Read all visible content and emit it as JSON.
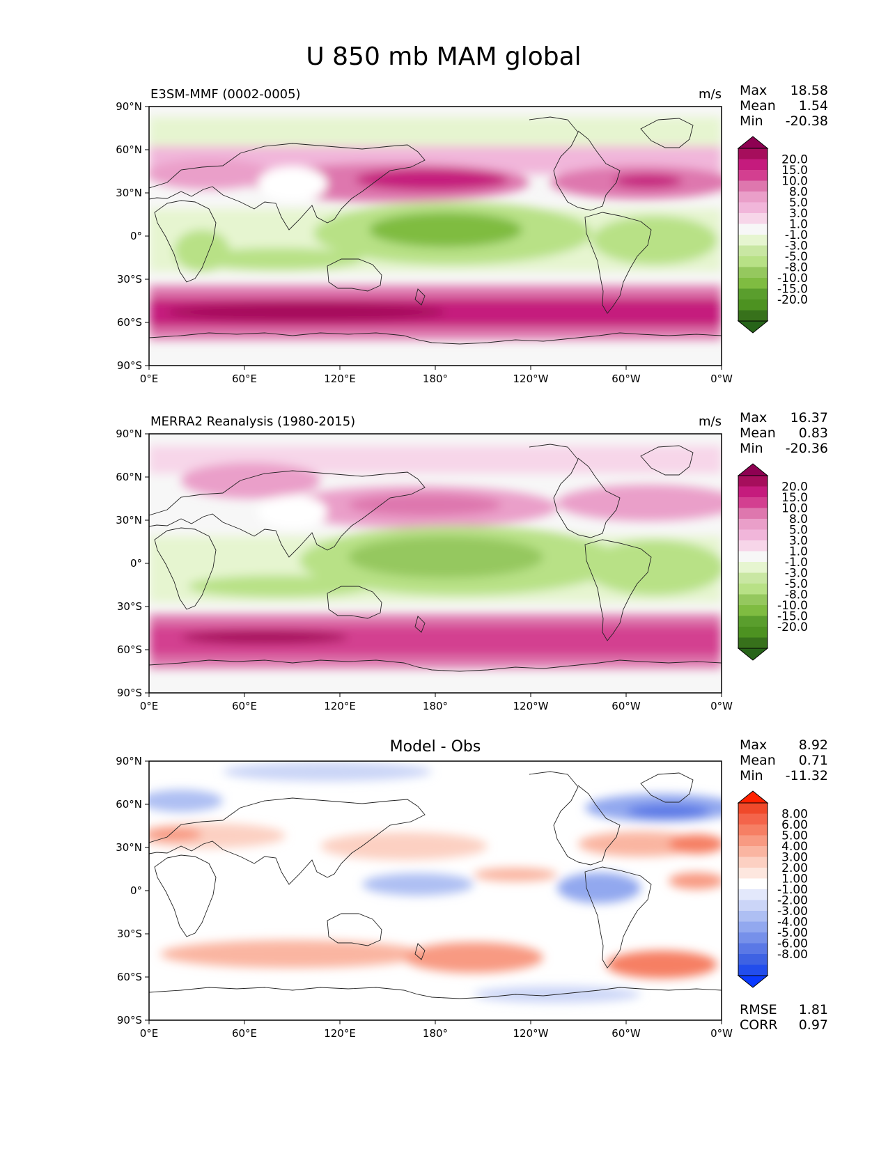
{
  "figure": {
    "title": "U 850 mb MAM global"
  },
  "chart_data": [
    {
      "type": "heatmap",
      "panel": "test",
      "left_title": "E3SM-MMF (0002-0005)",
      "units": "m/s",
      "center_title": "",
      "x_ticks": [
        "0°E",
        "60°E",
        "120°E",
        "180°",
        "120°W",
        "60°W",
        "0°W"
      ],
      "y_ticks": [
        "90°N",
        "60°N",
        "30°N",
        "0°",
        "30°S",
        "60°S",
        "90°S"
      ],
      "xlim": [
        0,
        360
      ],
      "ylim": [
        -90,
        90
      ],
      "stats": [
        {
          "label": "Max",
          "value": "18.58"
        },
        {
          "label": "Mean",
          "value": "1.54"
        },
        {
          "label": "Min",
          "value": "-20.38"
        }
      ],
      "colorbar": {
        "extend": "both",
        "levels": [
          "20.0",
          "15.0",
          "10.0",
          "8.0",
          "5.0",
          "3.0",
          "1.0",
          "-1.0",
          "-3.0",
          "-5.0",
          "-8.0",
          "-10.0",
          "-15.0",
          "-20.0"
        ],
        "colors": [
          "#8e0152",
          "#a60e5c",
          "#c51b7d",
          "#d33f90",
          "#de77ae",
          "#ea9fc9",
          "#f1b6da",
          "#f7d6e9",
          "#f7f7f7",
          "#e6f5d0",
          "#c9e7a3",
          "#b8e186",
          "#95c85e",
          "#7fbc41",
          "#5a9e2d",
          "#4d9221",
          "#37711b",
          "#276419"
        ]
      }
    },
    {
      "type": "heatmap",
      "panel": "reference",
      "left_title": "MERRA2 Reanalysis (1980-2015)",
      "units": "m/s",
      "center_title": "",
      "x_ticks": [
        "0°E",
        "60°E",
        "120°E",
        "180°",
        "120°W",
        "60°W",
        "0°W"
      ],
      "y_ticks": [
        "90°N",
        "60°N",
        "30°N",
        "0°",
        "30°S",
        "60°S",
        "90°S"
      ],
      "xlim": [
        0,
        360
      ],
      "ylim": [
        -90,
        90
      ],
      "stats": [
        {
          "label": "Max",
          "value": "16.37"
        },
        {
          "label": "Mean",
          "value": "0.83"
        },
        {
          "label": "Min",
          "value": "-20.36"
        }
      ],
      "colorbar": {
        "extend": "both",
        "levels": [
          "20.0",
          "15.0",
          "10.0",
          "8.0",
          "5.0",
          "3.0",
          "1.0",
          "-1.0",
          "-3.0",
          "-5.0",
          "-8.0",
          "-10.0",
          "-15.0",
          "-20.0"
        ],
        "colors": [
          "#8e0152",
          "#a60e5c",
          "#c51b7d",
          "#d33f90",
          "#de77ae",
          "#ea9fc9",
          "#f1b6da",
          "#f7d6e9",
          "#f7f7f7",
          "#e6f5d0",
          "#c9e7a3",
          "#b8e186",
          "#95c85e",
          "#7fbc41",
          "#5a9e2d",
          "#4d9221",
          "#37711b",
          "#276419"
        ]
      }
    },
    {
      "type": "heatmap",
      "panel": "difference",
      "left_title": "",
      "units": "",
      "center_title": "Model - Obs",
      "x_ticks": [
        "0°E",
        "60°E",
        "120°E",
        "180°",
        "120°W",
        "60°W",
        "0°W"
      ],
      "y_ticks": [
        "90°N",
        "60°N",
        "30°N",
        "0°",
        "30°S",
        "60°S",
        "90°S"
      ],
      "xlim": [
        0,
        360
      ],
      "ylim": [
        -90,
        90
      ],
      "stats": [
        {
          "label": "Max",
          "value": "8.92"
        },
        {
          "label": "Mean",
          "value": "0.71"
        },
        {
          "label": "Min",
          "value": "-11.32"
        }
      ],
      "metrics": [
        {
          "label": "RMSE",
          "value": "1.81"
        },
        {
          "label": "CORR",
          "value": "0.97"
        }
      ],
      "colorbar": {
        "extend": "both",
        "levels": [
          "8.00",
          "6.00",
          "5.00",
          "4.00",
          "3.00",
          "2.00",
          "1.00",
          "-1.00",
          "-2.00",
          "-3.00",
          "-4.00",
          "-5.00",
          "-6.00",
          "-8.00"
        ],
        "colors": [
          "#ff2200",
          "#f0492a",
          "#f4644a",
          "#f67f64",
          "#f89a82",
          "#fab5a1",
          "#fcd0c2",
          "#fde7df",
          "#ffffff",
          "#e3e8fb",
          "#cbd5f7",
          "#aebff3",
          "#92a8ef",
          "#7690ea",
          "#5a78e6",
          "#3e62e3",
          "#224dec",
          "#0a3aff"
        ]
      }
    }
  ]
}
